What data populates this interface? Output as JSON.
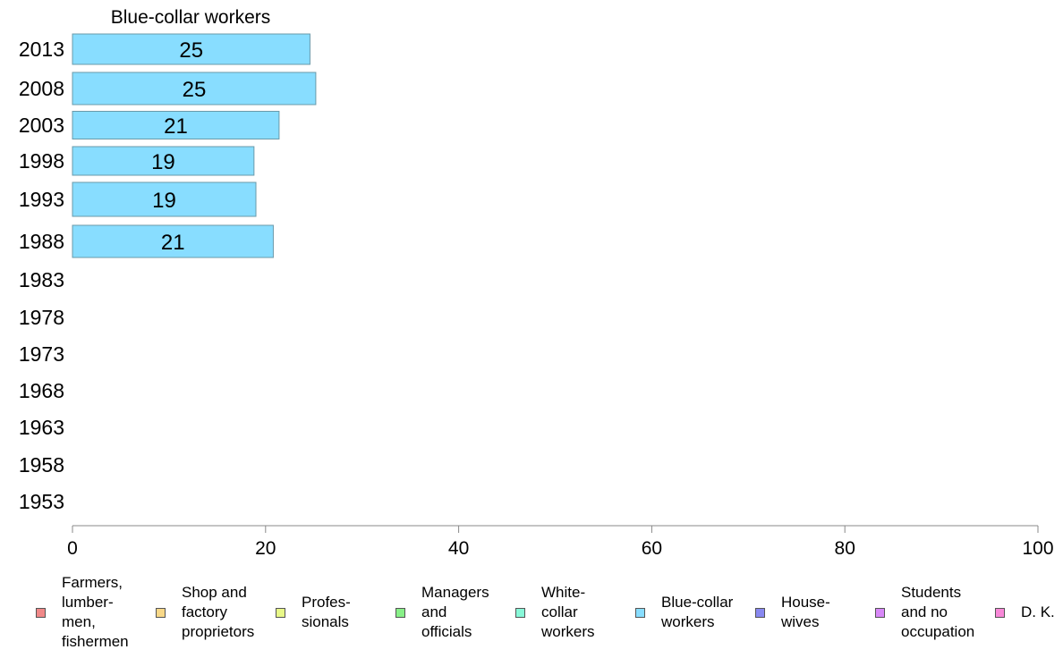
{
  "chart_data": {
    "type": "bar",
    "orientation": "horizontal",
    "title": "Blue-collar workers",
    "categories": [
      "2013",
      "2008",
      "2003",
      "1998",
      "1993",
      "1988",
      "1983",
      "1978",
      "1973",
      "1968",
      "1963",
      "1958",
      "1953"
    ],
    "series": [
      {
        "name": "Blue-collar workers",
        "color": "#88ddff",
        "values": [
          24.6,
          25.2,
          21.4,
          18.8,
          19.0,
          20.8,
          null,
          null,
          null,
          null,
          null,
          null,
          null
        ],
        "labels": [
          "25",
          "25",
          "21",
          "19",
          "19",
          "21",
          "",
          "",
          "",
          "",
          "",
          "",
          ""
        ]
      }
    ],
    "xlim": [
      0,
      100
    ],
    "xticks": [
      "0",
      "20",
      "40",
      "60",
      "80",
      "100"
    ],
    "grid": false,
    "legend_placement": "bottom",
    "legend": [
      {
        "label": "Farmers,\nlumber-\nmen,\nfishermen",
        "color": "#f08888"
      },
      {
        "label": "Shop and\nfactory\nproprietors",
        "color": "#f8d888"
      },
      {
        "label": "Profes-\nsionals",
        "color": "#e8f888"
      },
      {
        "label": "Managers\nand\nofficials",
        "color": "#88f088"
      },
      {
        "label": "White-\ncollar\nworkers",
        "color": "#88f8d8"
      },
      {
        "label": "Blue-collar\nworkers",
        "color": "#88ddff"
      },
      {
        "label": "House-\nwives",
        "color": "#8888f0"
      },
      {
        "label": "Students\nand no\noccupation",
        "color": "#d888f8"
      },
      {
        "label": "D. K.",
        "color": "#f888d8"
      }
    ]
  }
}
